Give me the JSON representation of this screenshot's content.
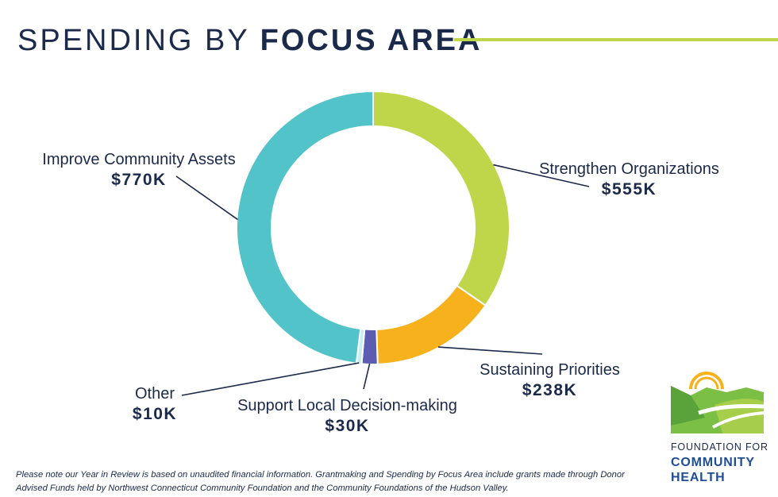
{
  "title": {
    "light": "SPENDING BY ",
    "bold": "FOCUS AREA"
  },
  "chart_data": {
    "type": "pie",
    "variant": "donut",
    "slices": [
      {
        "label": "Strengthen Organizations",
        "value_text": "$555K",
        "value": 555,
        "color": "#bfd64b"
      },
      {
        "label": "Sustaining Priorities",
        "value_text": "$238K",
        "value": 238,
        "color": "#f6b11c"
      },
      {
        "label": "Support Local Decision-making",
        "value_text": "$30K",
        "value": 30,
        "color": "#5c5db0"
      },
      {
        "label": "Other",
        "value_text": "$10K",
        "value": 10,
        "color": "#c8eef2"
      },
      {
        "label": "Improve Community Assets",
        "value_text": "$770K",
        "value": 770,
        "color": "#52c4c9"
      }
    ]
  },
  "footnote": "Please note our Year in Review is based on unaudited financial information. Grantmaking and Spending by Focus Area include grants made through Donor Advised Funds held by Northwest Connecticut Community Foundation and the Community Foundations of the Hudson Valley.",
  "logo": {
    "line1": "FOUNDATION FOR",
    "line2": "COMMUNITY",
    "line3": "HEALTH"
  },
  "colors": {
    "navy": "#1b2a4a",
    "accent_green": "#bfd64b",
    "logo_blue": "#1f4e96"
  }
}
